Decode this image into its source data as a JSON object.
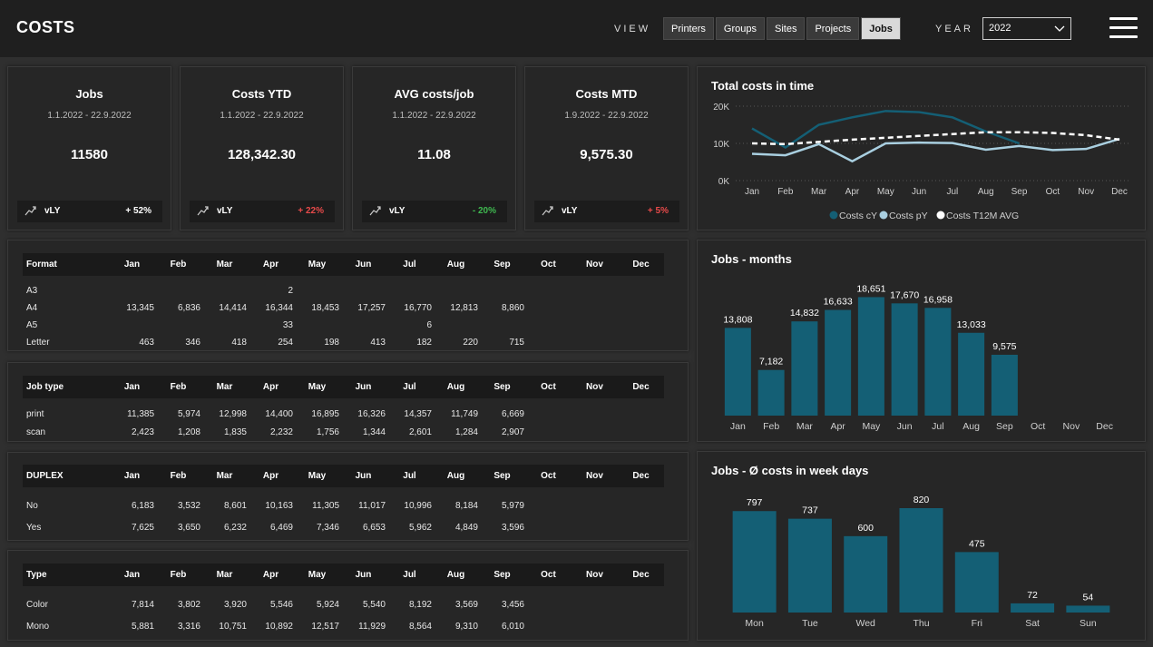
{
  "header": {
    "title": "COSTS",
    "view_label": "VIEW",
    "tabs": [
      {
        "label": "Printers",
        "active": false
      },
      {
        "label": "Groups",
        "active": false
      },
      {
        "label": "Sites",
        "active": false
      },
      {
        "label": "Projects",
        "active": false
      },
      {
        "label": "Jobs",
        "active": true
      }
    ],
    "year_label": "YEAR",
    "year_value": "2022",
    "menu_icon": "hamburger-icon"
  },
  "kpis": [
    {
      "title": "Jobs",
      "date": "1.1.2022 - 22.9.2022",
      "value": "11580",
      "vly_label": "vLY",
      "delta": "+ 52%",
      "delta_color": "#ffffff"
    },
    {
      "title": "Costs YTD",
      "date": "1.1.2022 - 22.9.2022",
      "value": "128,342.30",
      "vly_label": "vLY",
      "delta": "+ 22%",
      "delta_color": "#e84a4a"
    },
    {
      "title": "AVG costs/job",
      "date": "1.1.2022 - 22.9.2022",
      "value": "11.08",
      "vly_label": "vLY",
      "delta": "- 20%",
      "delta_color": "#3fb950"
    },
    {
      "title": "Costs MTD",
      "date": "1.9.2022 - 22.9.2022",
      "value": "9,575.30",
      "vly_label": "vLY",
      "delta": "+ 5%",
      "delta_color": "#e84a4a"
    }
  ],
  "months": [
    "Jan",
    "Feb",
    "Mar",
    "Apr",
    "May",
    "Jun",
    "Jul",
    "Aug",
    "Sep",
    "Oct",
    "Nov",
    "Dec"
  ],
  "tables": [
    {
      "header": "Format",
      "rows": [
        {
          "label": "A3",
          "values": [
            "",
            "",
            "",
            "2",
            "",
            "",
            "",
            "",
            "",
            "",
            "",
            ""
          ]
        },
        {
          "label": "A4",
          "values": [
            "13,345",
            "6,836",
            "14,414",
            "16,344",
            "18,453",
            "17,257",
            "16,770",
            "12,813",
            "8,860",
            "",
            "",
            ""
          ]
        },
        {
          "label": "A5",
          "values": [
            "",
            "",
            "",
            "33",
            "",
            "",
            "6",
            "",
            "",
            "",
            "",
            ""
          ]
        },
        {
          "label": "Letter",
          "values": [
            "463",
            "346",
            "418",
            "254",
            "198",
            "413",
            "182",
            "220",
            "715",
            "",
            "",
            ""
          ]
        }
      ]
    },
    {
      "header": "Job type",
      "rows": [
        {
          "label": "print",
          "values": [
            "11,385",
            "5,974",
            "12,998",
            "14,400",
            "16,895",
            "16,326",
            "14,357",
            "11,749",
            "6,669",
            "",
            "",
            ""
          ]
        },
        {
          "label": "scan",
          "values": [
            "2,423",
            "1,208",
            "1,835",
            "2,232",
            "1,756",
            "1,344",
            "2,601",
            "1,284",
            "2,907",
            "",
            "",
            ""
          ]
        }
      ]
    },
    {
      "header": "DUPLEX",
      "rows": [
        {
          "label": "No",
          "values": [
            "6,183",
            "3,532",
            "8,601",
            "10,163",
            "11,305",
            "11,017",
            "10,996",
            "8,184",
            "5,979",
            "",
            "",
            ""
          ]
        },
        {
          "label": "Yes",
          "values": [
            "7,625",
            "3,650",
            "6,232",
            "6,469",
            "7,346",
            "6,653",
            "5,962",
            "4,849",
            "3,596",
            "",
            "",
            ""
          ]
        }
      ]
    },
    {
      "header": "Type",
      "rows": [
        {
          "label": "Color",
          "values": [
            "7,814",
            "3,802",
            "3,920",
            "5,546",
            "5,924",
            "5,540",
            "8,192",
            "3,569",
            "3,456",
            "",
            "",
            ""
          ]
        },
        {
          "label": "Mono",
          "values": [
            "5,881",
            "3,316",
            "10,751",
            "10,892",
            "12,517",
            "11,929",
            "8,564",
            "9,310",
            "6,010",
            "",
            "",
            ""
          ]
        }
      ]
    }
  ],
  "colors": {
    "accent": "#145f75",
    "pY": "#a9cfe0",
    "avg": "#ffffff",
    "negative": "#e84a4a",
    "positive": "#3fb950"
  },
  "chart_data": [
    {
      "type": "line",
      "title": "Total costs in time",
      "categories": [
        "Jan",
        "Feb",
        "Mar",
        "Apr",
        "May",
        "Jun",
        "Jul",
        "Aug",
        "Sep",
        "Oct",
        "Nov",
        "Dec"
      ],
      "y_ticks": [
        "0K",
        "10K",
        "20K"
      ],
      "ylim": [
        0,
        20000
      ],
      "grid": true,
      "legend_position": "bottom",
      "series": [
        {
          "name": "Costs cY",
          "values": [
            14000,
            8900,
            15000,
            17000,
            18700,
            18400,
            17000,
            13200,
            10000,
            null,
            null,
            null
          ]
        },
        {
          "name": "Costs pY",
          "values": [
            7200,
            6800,
            9800,
            5200,
            10000,
            10200,
            10100,
            8300,
            9300,
            8200,
            8500,
            11200
          ]
        },
        {
          "name": "Costs T12M AVG",
          "values": [
            10000,
            9800,
            10400,
            11000,
            11500,
            12000,
            12500,
            13000,
            13000,
            12800,
            12200,
            11000
          ]
        }
      ]
    },
    {
      "type": "bar",
      "title": "Jobs - months",
      "categories": [
        "Jan",
        "Feb",
        "Mar",
        "Apr",
        "May",
        "Jun",
        "Jul",
        "Aug",
        "Sep",
        "Oct",
        "Nov",
        "Dec"
      ],
      "values": [
        13808,
        7182,
        14832,
        16633,
        18651,
        17670,
        16958,
        13033,
        9575,
        null,
        null,
        null
      ],
      "labels": [
        "13,808",
        "7,182",
        "14,832",
        "16,633",
        "18,651",
        "17,670",
        "16,958",
        "13,033",
        "9,575",
        "",
        "",
        ""
      ],
      "ylim": [
        0,
        20000
      ]
    },
    {
      "type": "bar",
      "title": "Jobs - Ø costs in week days",
      "categories": [
        "Mon",
        "Tue",
        "Wed",
        "Thu",
        "Fri",
        "Sat",
        "Sun"
      ],
      "values": [
        797,
        737,
        600,
        820,
        475,
        72,
        54
      ],
      "labels": [
        "797",
        "737",
        "600",
        "820",
        "475",
        "72",
        "54"
      ],
      "ylim": [
        0,
        820
      ]
    }
  ]
}
